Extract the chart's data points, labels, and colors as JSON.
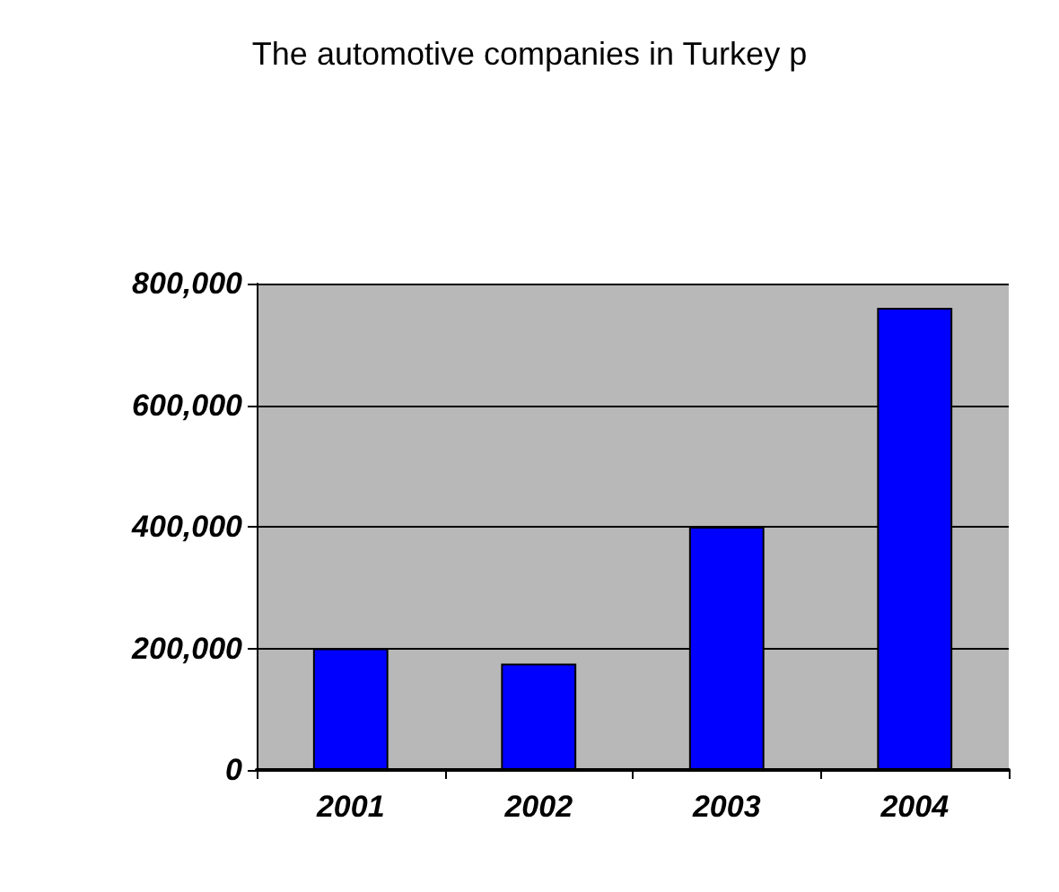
{
  "chart_data": {
    "type": "bar",
    "title": "The automotive companies in Turkey p",
    "categories": [
      "2001",
      "2002",
      "2003",
      "2004"
    ],
    "values": [
      200000,
      175000,
      400000,
      760000
    ],
    "color": "#0000ff",
    "ylim": [
      0,
      800000
    ],
    "yticks": [
      0,
      {
        "value": 200000,
        "label": "200,000"
      },
      {
        "value": 400000,
        "label": "400,000"
      },
      {
        "value": 600000,
        "label": "600,000"
      },
      {
        "value": 800000,
        "label": "800,000"
      }
    ],
    "grid": "y"
  }
}
